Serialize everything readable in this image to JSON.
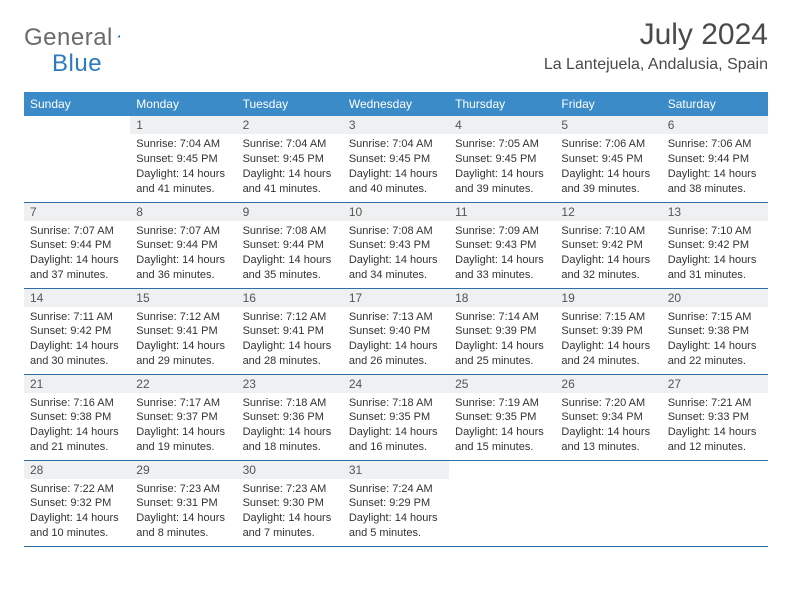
{
  "brand": {
    "name_gray": "General",
    "name_blue": "Blue"
  },
  "title": "July 2024",
  "location": "La Lantejuela, Andalusia, Spain",
  "colors": {
    "header_bg": "#3b8bc9",
    "header_text": "#ffffff",
    "daynum_bg": "#eef0f2",
    "row_border": "#2f6fa3",
    "brand_gray": "#6a6a6a",
    "brand_blue": "#2b7bbf",
    "title_color": "#4a4a4a",
    "body_text": "#333333",
    "page_bg": "#ffffff"
  },
  "typography": {
    "title_fontsize": 30,
    "location_fontsize": 16,
    "weekday_fontsize": 12,
    "daynum_fontsize": 12,
    "body_fontsize": 11
  },
  "weekdays": [
    "Sunday",
    "Monday",
    "Tuesday",
    "Wednesday",
    "Thursday",
    "Friday",
    "Saturday"
  ],
  "weeks": [
    [
      {
        "n": "",
        "sr": "",
        "ss": "",
        "dl": ""
      },
      {
        "n": "1",
        "sr": "Sunrise: 7:04 AM",
        "ss": "Sunset: 9:45 PM",
        "dl": "Daylight: 14 hours and 41 minutes."
      },
      {
        "n": "2",
        "sr": "Sunrise: 7:04 AM",
        "ss": "Sunset: 9:45 PM",
        "dl": "Daylight: 14 hours and 41 minutes."
      },
      {
        "n": "3",
        "sr": "Sunrise: 7:04 AM",
        "ss": "Sunset: 9:45 PM",
        "dl": "Daylight: 14 hours and 40 minutes."
      },
      {
        "n": "4",
        "sr": "Sunrise: 7:05 AM",
        "ss": "Sunset: 9:45 PM",
        "dl": "Daylight: 14 hours and 39 minutes."
      },
      {
        "n": "5",
        "sr": "Sunrise: 7:06 AM",
        "ss": "Sunset: 9:45 PM",
        "dl": "Daylight: 14 hours and 39 minutes."
      },
      {
        "n": "6",
        "sr": "Sunrise: 7:06 AM",
        "ss": "Sunset: 9:44 PM",
        "dl": "Daylight: 14 hours and 38 minutes."
      }
    ],
    [
      {
        "n": "7",
        "sr": "Sunrise: 7:07 AM",
        "ss": "Sunset: 9:44 PM",
        "dl": "Daylight: 14 hours and 37 minutes."
      },
      {
        "n": "8",
        "sr": "Sunrise: 7:07 AM",
        "ss": "Sunset: 9:44 PM",
        "dl": "Daylight: 14 hours and 36 minutes."
      },
      {
        "n": "9",
        "sr": "Sunrise: 7:08 AM",
        "ss": "Sunset: 9:44 PM",
        "dl": "Daylight: 14 hours and 35 minutes."
      },
      {
        "n": "10",
        "sr": "Sunrise: 7:08 AM",
        "ss": "Sunset: 9:43 PM",
        "dl": "Daylight: 14 hours and 34 minutes."
      },
      {
        "n": "11",
        "sr": "Sunrise: 7:09 AM",
        "ss": "Sunset: 9:43 PM",
        "dl": "Daylight: 14 hours and 33 minutes."
      },
      {
        "n": "12",
        "sr": "Sunrise: 7:10 AM",
        "ss": "Sunset: 9:42 PM",
        "dl": "Daylight: 14 hours and 32 minutes."
      },
      {
        "n": "13",
        "sr": "Sunrise: 7:10 AM",
        "ss": "Sunset: 9:42 PM",
        "dl": "Daylight: 14 hours and 31 minutes."
      }
    ],
    [
      {
        "n": "14",
        "sr": "Sunrise: 7:11 AM",
        "ss": "Sunset: 9:42 PM",
        "dl": "Daylight: 14 hours and 30 minutes."
      },
      {
        "n": "15",
        "sr": "Sunrise: 7:12 AM",
        "ss": "Sunset: 9:41 PM",
        "dl": "Daylight: 14 hours and 29 minutes."
      },
      {
        "n": "16",
        "sr": "Sunrise: 7:12 AM",
        "ss": "Sunset: 9:41 PM",
        "dl": "Daylight: 14 hours and 28 minutes."
      },
      {
        "n": "17",
        "sr": "Sunrise: 7:13 AM",
        "ss": "Sunset: 9:40 PM",
        "dl": "Daylight: 14 hours and 26 minutes."
      },
      {
        "n": "18",
        "sr": "Sunrise: 7:14 AM",
        "ss": "Sunset: 9:39 PM",
        "dl": "Daylight: 14 hours and 25 minutes."
      },
      {
        "n": "19",
        "sr": "Sunrise: 7:15 AM",
        "ss": "Sunset: 9:39 PM",
        "dl": "Daylight: 14 hours and 24 minutes."
      },
      {
        "n": "20",
        "sr": "Sunrise: 7:15 AM",
        "ss": "Sunset: 9:38 PM",
        "dl": "Daylight: 14 hours and 22 minutes."
      }
    ],
    [
      {
        "n": "21",
        "sr": "Sunrise: 7:16 AM",
        "ss": "Sunset: 9:38 PM",
        "dl": "Daylight: 14 hours and 21 minutes."
      },
      {
        "n": "22",
        "sr": "Sunrise: 7:17 AM",
        "ss": "Sunset: 9:37 PM",
        "dl": "Daylight: 14 hours and 19 minutes."
      },
      {
        "n": "23",
        "sr": "Sunrise: 7:18 AM",
        "ss": "Sunset: 9:36 PM",
        "dl": "Daylight: 14 hours and 18 minutes."
      },
      {
        "n": "24",
        "sr": "Sunrise: 7:18 AM",
        "ss": "Sunset: 9:35 PM",
        "dl": "Daylight: 14 hours and 16 minutes."
      },
      {
        "n": "25",
        "sr": "Sunrise: 7:19 AM",
        "ss": "Sunset: 9:35 PM",
        "dl": "Daylight: 14 hours and 15 minutes."
      },
      {
        "n": "26",
        "sr": "Sunrise: 7:20 AM",
        "ss": "Sunset: 9:34 PM",
        "dl": "Daylight: 14 hours and 13 minutes."
      },
      {
        "n": "27",
        "sr": "Sunrise: 7:21 AM",
        "ss": "Sunset: 9:33 PM",
        "dl": "Daylight: 14 hours and 12 minutes."
      }
    ],
    [
      {
        "n": "28",
        "sr": "Sunrise: 7:22 AM",
        "ss": "Sunset: 9:32 PM",
        "dl": "Daylight: 14 hours and 10 minutes."
      },
      {
        "n": "29",
        "sr": "Sunrise: 7:23 AM",
        "ss": "Sunset: 9:31 PM",
        "dl": "Daylight: 14 hours and 8 minutes."
      },
      {
        "n": "30",
        "sr": "Sunrise: 7:23 AM",
        "ss": "Sunset: 9:30 PM",
        "dl": "Daylight: 14 hours and 7 minutes."
      },
      {
        "n": "31",
        "sr": "Sunrise: 7:24 AM",
        "ss": "Sunset: 9:29 PM",
        "dl": "Daylight: 14 hours and 5 minutes."
      },
      {
        "n": "",
        "sr": "",
        "ss": "",
        "dl": ""
      },
      {
        "n": "",
        "sr": "",
        "ss": "",
        "dl": ""
      },
      {
        "n": "",
        "sr": "",
        "ss": "",
        "dl": ""
      }
    ]
  ]
}
